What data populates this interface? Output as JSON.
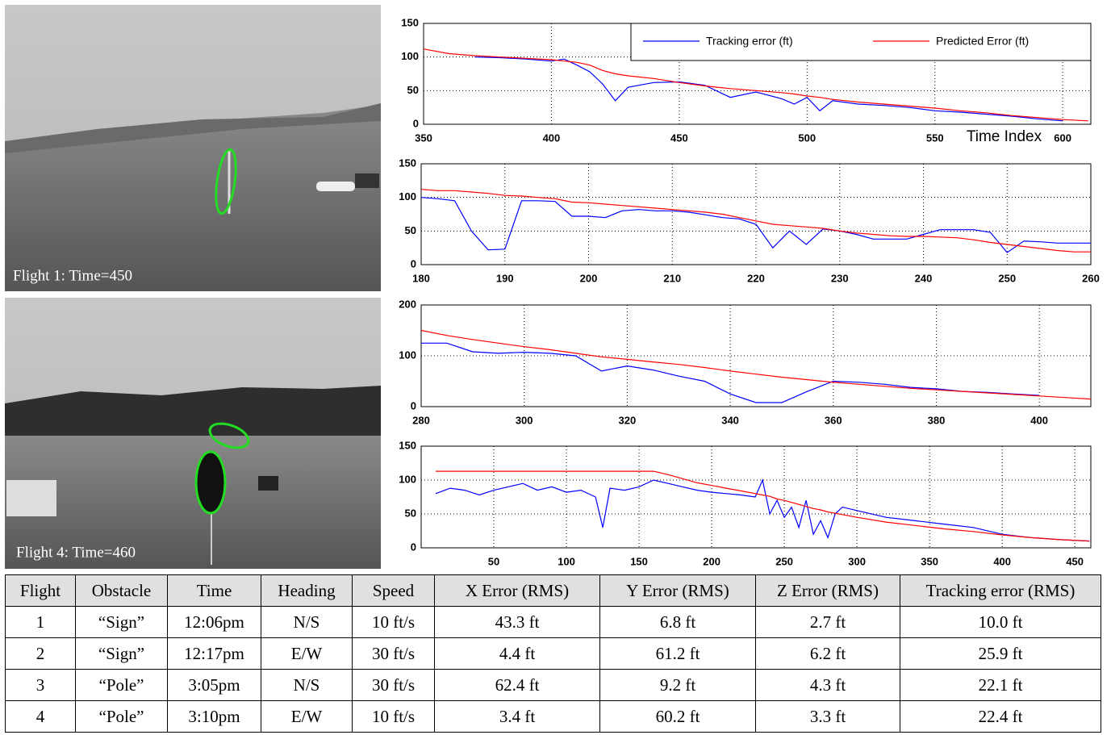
{
  "photos": [
    {
      "caption": "Flight 1: Time=450"
    },
    {
      "caption": "Flight 4: Time=460"
    }
  ],
  "chart_data": [
    {
      "type": "line",
      "xlabel": "Time Index",
      "legend": "upper right",
      "grid": true,
      "xlim": [
        350,
        611
      ],
      "xticks": [
        350,
        400,
        450,
        500,
        550,
        600
      ],
      "ylim": [
        0,
        150
      ],
      "yticks": [
        0,
        50,
        100,
        150
      ],
      "x": [
        350,
        360,
        370,
        380,
        390,
        400,
        405,
        410,
        415,
        420,
        425,
        430,
        440,
        450,
        460,
        470,
        480,
        490,
        495,
        500,
        505,
        510,
        520,
        530,
        540,
        550,
        560,
        570,
        580,
        590,
        600,
        610
      ],
      "series": [
        {
          "name": "Tracking error (ft)",
          "color": "#0000ff",
          "values": [
            null,
            null,
            100,
            99,
            97,
            94,
            97,
            88,
            78,
            60,
            35,
            55,
            62,
            63,
            58,
            40,
            48,
            38,
            30,
            40,
            20,
            35,
            30,
            28,
            25,
            20,
            18,
            15,
            12,
            8,
            5,
            null
          ]
        },
        {
          "name": "Predicted Error (ft)",
          "color": "#ff0000",
          "values": [
            112,
            105,
            102,
            100,
            98,
            96,
            94,
            92,
            88,
            80,
            75,
            72,
            68,
            62,
            57,
            53,
            50,
            47,
            45,
            42,
            40,
            37,
            33,
            30,
            27,
            24,
            20,
            17,
            13,
            10,
            7,
            5
          ]
        }
      ]
    },
    {
      "type": "line",
      "grid": true,
      "xlim": [
        180,
        260
      ],
      "xticks": [
        180,
        190,
        200,
        210,
        220,
        230,
        240,
        250,
        260
      ],
      "ylim": [
        0,
        150
      ],
      "yticks": [
        0,
        50,
        100,
        150
      ],
      "x": [
        180,
        182,
        184,
        186,
        188,
        190,
        192,
        194,
        196,
        198,
        200,
        202,
        204,
        206,
        208,
        210,
        212,
        214,
        216,
        218,
        220,
        222,
        224,
        226,
        228,
        230,
        232,
        234,
        236,
        238,
        240,
        242,
        244,
        246,
        248,
        250,
        252,
        254,
        256,
        258,
        260
      ],
      "series": [
        {
          "color": "#0000ff",
          "values": [
            100,
            98,
            95,
            50,
            22,
            23,
            95,
            95,
            94,
            72,
            72,
            70,
            80,
            82,
            80,
            80,
            78,
            74,
            70,
            68,
            60,
            25,
            50,
            30,
            53,
            50,
            45,
            38,
            38,
            38,
            45,
            52,
            52,
            52,
            48,
            18,
            35,
            34,
            32,
            32,
            32
          ]
        },
        {
          "color": "#ff0000",
          "values": [
            112,
            110,
            110,
            108,
            106,
            103,
            102,
            100,
            98,
            93,
            92,
            90,
            88,
            86,
            84,
            82,
            80,
            78,
            75,
            70,
            65,
            60,
            58,
            56,
            54,
            50,
            47,
            45,
            43,
            42,
            42,
            41,
            40,
            37,
            33,
            30,
            27,
            24,
            21,
            19,
            19
          ]
        }
      ]
    },
    {
      "type": "line",
      "grid": true,
      "xlim": [
        280,
        410
      ],
      "xticks": [
        280,
        300,
        320,
        340,
        360,
        380,
        400
      ],
      "ylim": [
        0,
        200
      ],
      "yticks": [
        0,
        100,
        200
      ],
      "x": [
        280,
        285,
        290,
        295,
        300,
        305,
        310,
        315,
        320,
        325,
        330,
        335,
        340,
        345,
        350,
        355,
        360,
        365,
        370,
        375,
        380,
        385,
        390,
        395,
        400,
        405,
        410
      ],
      "series": [
        {
          "color": "#0000ff",
          "values": [
            125,
            125,
            108,
            105,
            107,
            105,
            100,
            70,
            80,
            72,
            60,
            50,
            25,
            8,
            8,
            30,
            50,
            48,
            44,
            38,
            35,
            30,
            28,
            25,
            22,
            null,
            null
          ]
        },
        {
          "color": "#ff0000",
          "values": [
            150,
            140,
            132,
            125,
            118,
            112,
            105,
            98,
            93,
            88,
            83,
            77,
            70,
            64,
            58,
            53,
            48,
            44,
            40,
            36,
            33,
            30,
            27,
            24,
            21,
            18,
            15
          ]
        }
      ]
    },
    {
      "type": "line",
      "grid": true,
      "xlim": [
        0,
        461
      ],
      "xticks": [
        50,
        100,
        150,
        200,
        250,
        300,
        350,
        400,
        450
      ],
      "ylim": [
        0,
        150
      ],
      "yticks": [
        0,
        50,
        100,
        150
      ],
      "x": [
        10,
        20,
        30,
        40,
        50,
        60,
        70,
        80,
        90,
        100,
        110,
        120,
        125,
        130,
        140,
        150,
        160,
        170,
        180,
        190,
        200,
        210,
        220,
        230,
        235,
        240,
        245,
        250,
        255,
        260,
        265,
        270,
        275,
        280,
        285,
        290,
        300,
        320,
        340,
        360,
        380,
        400,
        420,
        440,
        460
      ],
      "series": [
        {
          "color": "#0000ff",
          "values": [
            80,
            88,
            85,
            78,
            85,
            90,
            95,
            85,
            90,
            82,
            85,
            75,
            30,
            88,
            85,
            90,
            100,
            95,
            90,
            85,
            82,
            80,
            78,
            75,
            100,
            50,
            70,
            45,
            60,
            30,
            70,
            20,
            40,
            15,
            50,
            60,
            55,
            45,
            40,
            35,
            30,
            20,
            15,
            12,
            10
          ]
        },
        {
          "color": "#ff0000",
          "values": [
            113,
            113,
            113,
            113,
            113,
            113,
            113,
            113,
            113,
            113,
            113,
            113,
            113,
            113,
            113,
            113,
            113,
            108,
            102,
            96,
            92,
            88,
            84,
            80,
            78,
            76,
            72,
            70,
            67,
            64,
            61,
            58,
            56,
            53,
            51,
            49,
            45,
            38,
            33,
            28,
            24,
            19,
            15,
            12,
            10
          ]
        }
      ]
    }
  ],
  "table": {
    "header": [
      "Flight",
      "Obstacle",
      "Time",
      "Heading",
      "Speed",
      "X Error (RMS)",
      "Y Error  (RMS)",
      "Z Error  (RMS)",
      "Tracking error (RMS)"
    ],
    "rows": [
      [
        "1",
        "“Sign”",
        "12:06pm",
        "N/S",
        "10 ft/s",
        "43.3 ft",
        "6.8 ft",
        "2.7 ft",
        "10.0 ft"
      ],
      [
        "2",
        "“Sign”",
        "12:17pm",
        "E/W",
        "30 ft/s",
        "4.4 ft",
        "61.2 ft",
        "6.2 ft",
        "25.9 ft"
      ],
      [
        "3",
        "“Pole”",
        "3:05pm",
        "N/S",
        "30 ft/s",
        "62.4 ft",
        "9.2 ft",
        "4.3 ft",
        "22.1 ft"
      ],
      [
        "4",
        "“Pole”",
        "3:10pm",
        "E/W",
        "10 ft/s",
        "3.4 ft",
        "60.2 ft",
        "3.3 ft",
        "22.4 ft"
      ]
    ]
  }
}
